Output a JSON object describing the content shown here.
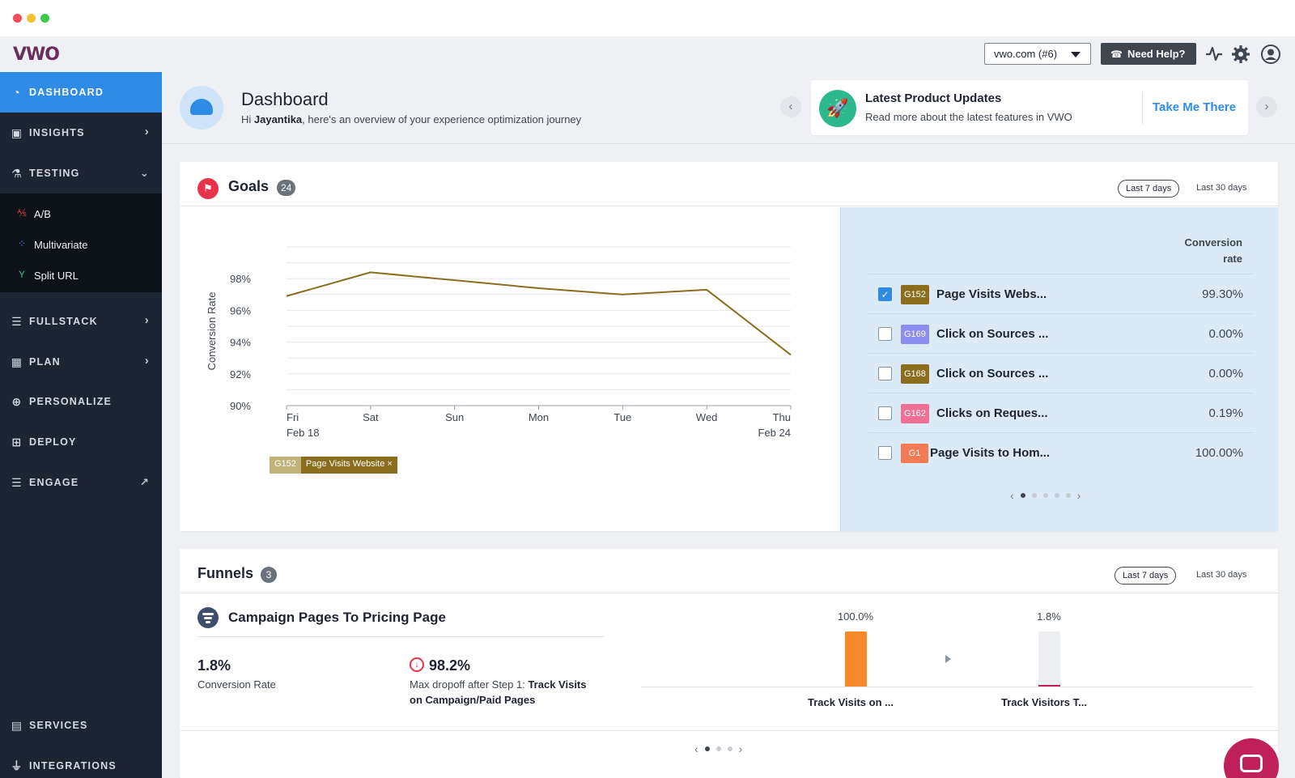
{
  "app": {
    "logo": "VWO"
  },
  "topbar": {
    "account_select": "vwo.com  (#6)",
    "help_button": "Need Help?",
    "icons": [
      "activity-icon",
      "gear-icon",
      "user-avatar-icon"
    ]
  },
  "sidebar": {
    "items": [
      {
        "label": "DASHBOARD",
        "icon": "dashboard-icon",
        "active": true
      },
      {
        "label": "INSIGHTS",
        "icon": "insights-icon"
      },
      {
        "label": "TESTING",
        "icon": "flask-icon"
      },
      {
        "label": "FULLSTACK",
        "icon": "server-icon"
      },
      {
        "label": "PLAN",
        "icon": "calendar-icon"
      },
      {
        "label": "PERSONALIZE",
        "icon": "target-icon"
      },
      {
        "label": "DEPLOY",
        "icon": "deploy-icon"
      },
      {
        "label": "ENGAGE",
        "icon": "engage-icon"
      },
      {
        "label": "SERVICES",
        "icon": "services-icon"
      },
      {
        "label": "INTEGRATIONS",
        "icon": "plug-icon"
      }
    ],
    "testing_sub": [
      {
        "label": "A/B",
        "icon": "ab-icon",
        "color": "#e8344a"
      },
      {
        "label": "Multivariate",
        "icon": "grid-icon",
        "color": "#5b8def"
      },
      {
        "label": "Split URL",
        "icon": "split-icon",
        "color": "#2ec27e"
      }
    ]
  },
  "header": {
    "title": "Dashboard",
    "subtitle_prefix": "Hi ",
    "user_name": "Jayantika",
    "subtitle_suffix": ", here's an overview of your experience optimization journey"
  },
  "updates": {
    "title": "Latest Product Updates",
    "subtitle": "Read more about the latest features in VWO",
    "link": "Take Me There"
  },
  "goals": {
    "title": "Goals",
    "count": "24",
    "range_active": "Last 7 days",
    "range_other": "Last 30 days",
    "column_header_line1": "Conversion",
    "column_header_line2": "rate",
    "rows": [
      {
        "id": "G152",
        "name": "Page Visits Webs...",
        "rate": "99.30%",
        "checked": true,
        "color": "#8b6d1e"
      },
      {
        "id": "G169",
        "name": "Click on Sources ...",
        "rate": "0.00%",
        "checked": false,
        "color": "#8d8cf0"
      },
      {
        "id": "G168",
        "name": "Click on Sources ...",
        "rate": "0.00%",
        "checked": false,
        "color": "#8b6d1e"
      },
      {
        "id": "G162",
        "name": "Clicks on Reques...",
        "rate": "0.19%",
        "checked": false,
        "color": "#f06f93"
      },
      {
        "id": "G1",
        "name": "Page Visits to Hom...",
        "rate": "100.00%",
        "checked": false,
        "color": "#f27a54"
      }
    ],
    "legend": {
      "id": "G152",
      "name": "Page Visits Website",
      "close": "×"
    }
  },
  "chart_data": {
    "type": "line",
    "categories": [
      "Fri",
      "Sat",
      "Sun",
      "Mon",
      "Tue",
      "Wed",
      "Thu"
    ],
    "date_labels": {
      "first": "Feb 18",
      "last": "Feb 24"
    },
    "series": [
      {
        "name": "Page Visits Website",
        "values": [
          96.9,
          98.4,
          97.9,
          97.4,
          97.0,
          97.3,
          93.2
        ],
        "color": "#8b6d1e"
      }
    ],
    "ylabel": "Conversion Rate",
    "yticks": [
      "90%",
      "92%",
      "94%",
      "96%",
      "98%"
    ],
    "ylim": [
      90,
      100
    ],
    "grid": true
  },
  "funnels": {
    "title": "Funnels",
    "count": "3",
    "range_active": "Last 7 days",
    "range_other": "Last 30 days",
    "funnel_name": "Campaign Pages To Pricing Page",
    "conversion_value": "1.8%",
    "conversion_label": "Conversion Rate",
    "dropoff_value": "98.2%",
    "dropoff_label_prefix": "Max dropoff after Step 1: ",
    "dropoff_step_line1": "Track Visits",
    "dropoff_step_line2": "on Campaign/Paid Pages",
    "steps": [
      {
        "pct": "100.0%",
        "name": "Track Visits on ...",
        "value": 100.0,
        "color": "#f7892a"
      },
      {
        "pct": "1.8%",
        "name": "Track Visitors T...",
        "value": 1.8,
        "color": "#c0205a"
      }
    ]
  }
}
